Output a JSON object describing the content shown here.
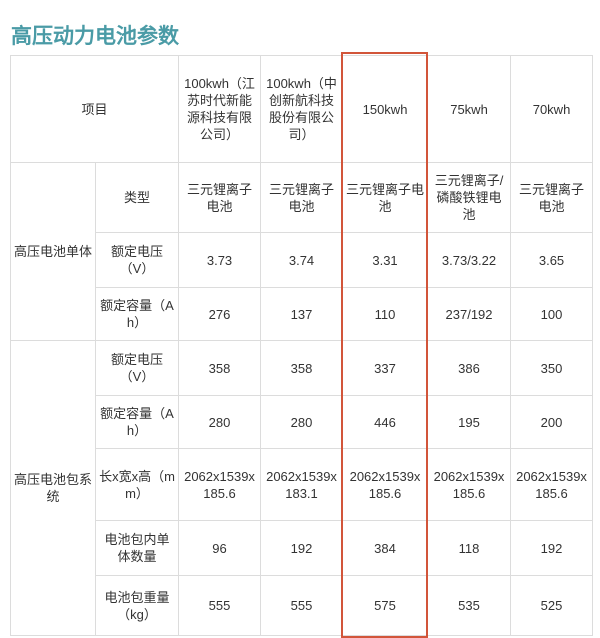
{
  "title": "高压动力电池参数",
  "header": {
    "item": "项目",
    "columns": [
      "100kwh（江苏时代新能源科技有限公司）",
      "100kwh（中创新航科技股份有限公司）",
      "150kwh",
      "75kwh",
      "70kwh"
    ]
  },
  "highlight_color": "#d2553a",
  "groups": [
    {
      "label": "高压电池单体",
      "rows": [
        {
          "label": "类型",
          "values": [
            "三元锂离子电池",
            "三元锂离子电池",
            "三元锂离子电池",
            "三元锂离子/磷酸铁锂电池",
            "三元锂离子电池"
          ]
        },
        {
          "label": "额定电压（V）",
          "values": [
            "3.73",
            "3.74",
            "3.31",
            "3.73/3.22",
            "3.65"
          ]
        },
        {
          "label": "额定容量（Ah）",
          "values": [
            "276",
            "137",
            "110",
            "237/192",
            "100"
          ]
        }
      ]
    },
    {
      "label": "高压电池包系统",
      "rows": [
        {
          "label": "额定电压（V）",
          "values": [
            "358",
            "358",
            "337",
            "386",
            "350"
          ]
        },
        {
          "label": "额定容量（Ah）",
          "values": [
            "280",
            "280",
            "446",
            "195",
            "200"
          ]
        },
        {
          "label": "长x宽x高（mm）",
          "values": [
            "2062x1539x185.6",
            "2062x1539x183.1",
            "2062x1539x185.6",
            "2062x1539x185.6",
            "2062x1539x185.6"
          ]
        },
        {
          "label": "电池包内单体数量",
          "values": [
            "96",
            "192",
            "384",
            "118",
            "192"
          ]
        },
        {
          "label": "电池包重量（kg）",
          "values": [
            "555",
            "555",
            "575",
            "535",
            "525"
          ]
        }
      ]
    }
  ]
}
